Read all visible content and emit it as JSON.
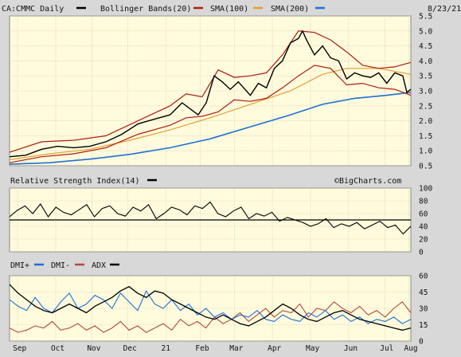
{
  "header": {
    "ticker": "CA:CMMC Daily",
    "date": "8/23/21",
    "watermark": "©BigCharts.com"
  },
  "colors": {
    "background": "#fffbdc",
    "frame": "#d8d8d8",
    "price": "#000000",
    "bollinger": "#b01b12",
    "sma100": "#e0a030",
    "sma200": "#1e6fd8",
    "dmi_plus": "#1e6fd8",
    "dmi_minus": "#b04a3a",
    "adx": "#000000"
  },
  "chart_data": [
    {
      "type": "line",
      "name": "price",
      "legend": [
        {
          "label": "CA:CMMC Daily",
          "color": "#000000"
        },
        {
          "label": "Bollinger Bands(20)",
          "color": "#b01b12"
        },
        {
          "label": "SMA(100)",
          "color": "#b01b12"
        },
        {
          "label": "SMA(200)",
          "color": "#e0a030"
        }
      ],
      "legend_extra_swatch": "#1e6fd8",
      "ylim": [
        0.5,
        5.5
      ],
      "y_ticks": [
        "5.5",
        "5.0",
        "4.5",
        "4.0",
        "3.5",
        "3.0",
        "2.5",
        "2.0",
        "1.5",
        "1.0",
        "0.5"
      ],
      "x_ticks": [
        "Sep",
        "Oct",
        "Nov",
        "Dec",
        "21",
        "Feb",
        "Mar",
        "Apr",
        "May",
        "Jun",
        "Jul",
        "Aug"
      ],
      "x_tick_positions": [
        0.02,
        0.115,
        0.205,
        0.295,
        0.39,
        0.475,
        0.56,
        0.655,
        0.75,
        0.845,
        0.935,
        0.995
      ],
      "price_points": [
        [
          0,
          0.8
        ],
        [
          0.04,
          0.85
        ],
        [
          0.08,
          1.05
        ],
        [
          0.12,
          1.15
        ],
        [
          0.16,
          1.1
        ],
        [
          0.2,
          1.15
        ],
        [
          0.24,
          1.3
        ],
        [
          0.28,
          1.55
        ],
        [
          0.32,
          1.9
        ],
        [
          0.36,
          2.05
        ],
        [
          0.4,
          2.2
        ],
        [
          0.43,
          2.6
        ],
        [
          0.45,
          2.4
        ],
        [
          0.47,
          2.2
        ],
        [
          0.49,
          2.6
        ],
        [
          0.51,
          3.5
        ],
        [
          0.53,
          3.3
        ],
        [
          0.55,
          3.05
        ],
        [
          0.57,
          3.3
        ],
        [
          0.6,
          2.85
        ],
        [
          0.62,
          3.25
        ],
        [
          0.64,
          3.1
        ],
        [
          0.66,
          3.75
        ],
        [
          0.68,
          4.0
        ],
        [
          0.7,
          4.6
        ],
        [
          0.72,
          4.75
        ],
        [
          0.73,
          5.0
        ],
        [
          0.74,
          4.7
        ],
        [
          0.76,
          4.2
        ],
        [
          0.78,
          4.5
        ],
        [
          0.8,
          4.1
        ],
        [
          0.82,
          4.0
        ],
        [
          0.84,
          3.4
        ],
        [
          0.86,
          3.6
        ],
        [
          0.88,
          3.5
        ],
        [
          0.9,
          3.45
        ],
        [
          0.92,
          3.6
        ],
        [
          0.94,
          3.25
        ],
        [
          0.96,
          3.6
        ],
        [
          0.98,
          3.5
        ],
        [
          0.99,
          2.95
        ],
        [
          1.0,
          3.05
        ]
      ],
      "bollinger_upper": [
        [
          0,
          0.95
        ],
        [
          0.08,
          1.3
        ],
        [
          0.16,
          1.35
        ],
        [
          0.24,
          1.5
        ],
        [
          0.32,
          2.0
        ],
        [
          0.4,
          2.5
        ],
        [
          0.44,
          2.9
        ],
        [
          0.48,
          2.8
        ],
        [
          0.52,
          3.7
        ],
        [
          0.56,
          3.45
        ],
        [
          0.6,
          3.5
        ],
        [
          0.64,
          3.6
        ],
        [
          0.68,
          4.2
        ],
        [
          0.72,
          5.0
        ],
        [
          0.76,
          4.95
        ],
        [
          0.8,
          4.7
        ],
        [
          0.84,
          4.3
        ],
        [
          0.88,
          3.85
        ],
        [
          0.92,
          3.75
        ],
        [
          0.96,
          3.8
        ],
        [
          1.0,
          3.95
        ]
      ],
      "bollinger_lower": [
        [
          0,
          0.6
        ],
        [
          0.08,
          0.8
        ],
        [
          0.16,
          0.9
        ],
        [
          0.24,
          1.1
        ],
        [
          0.32,
          1.55
        ],
        [
          0.4,
          1.85
        ],
        [
          0.44,
          2.1
        ],
        [
          0.48,
          2.15
        ],
        [
          0.52,
          2.3
        ],
        [
          0.56,
          2.7
        ],
        [
          0.6,
          2.65
        ],
        [
          0.64,
          2.75
        ],
        [
          0.68,
          3.1
        ],
        [
          0.72,
          3.5
        ],
        [
          0.76,
          3.85
        ],
        [
          0.8,
          3.75
        ],
        [
          0.84,
          3.2
        ],
        [
          0.88,
          3.25
        ],
        [
          0.92,
          3.1
        ],
        [
          0.96,
          3.05
        ],
        [
          1.0,
          2.85
        ]
      ],
      "sma100": [
        [
          0,
          0.7
        ],
        [
          0.1,
          0.9
        ],
        [
          0.2,
          1.05
        ],
        [
          0.3,
          1.35
        ],
        [
          0.4,
          1.7
        ],
        [
          0.5,
          2.1
        ],
        [
          0.6,
          2.55
        ],
        [
          0.7,
          3.0
        ],
        [
          0.78,
          3.55
        ],
        [
          0.84,
          3.75
        ],
        [
          0.92,
          3.75
        ],
        [
          1.0,
          3.55
        ]
      ],
      "sma200": [
        [
          0,
          0.55
        ],
        [
          0.1,
          0.6
        ],
        [
          0.2,
          0.72
        ],
        [
          0.3,
          0.88
        ],
        [
          0.4,
          1.1
        ],
        [
          0.5,
          1.4
        ],
        [
          0.6,
          1.8
        ],
        [
          0.7,
          2.2
        ],
        [
          0.78,
          2.55
        ],
        [
          0.86,
          2.75
        ],
        [
          0.94,
          2.85
        ],
        [
          1.0,
          2.95
        ]
      ]
    },
    {
      "type": "line",
      "name": "rsi",
      "title": "Relative Strength Index(14)",
      "legend_swatch": "#000000",
      "ylim": [
        0,
        100
      ],
      "y_ticks": [
        "100",
        "80",
        "60",
        "40",
        "20",
        "0"
      ],
      "reference_line": 50,
      "values": [
        55,
        65,
        72,
        60,
        75,
        55,
        70,
        62,
        58,
        66,
        74,
        55,
        68,
        72,
        60,
        56,
        70,
        64,
        74,
        52,
        60,
        70,
        66,
        58,
        72,
        68,
        78,
        60,
        55,
        64,
        70,
        52,
        60,
        56,
        62,
        48,
        54,
        50,
        46,
        40,
        44,
        52,
        38,
        44,
        40,
        46,
        36,
        42,
        48,
        38,
        42,
        28,
        40
      ]
    },
    {
      "type": "line",
      "name": "dmi",
      "legend": [
        {
          "label": "DMI+",
          "color": "#1e6fd8"
        },
        {
          "label": "DMI-",
          "color": "#b04a3a"
        },
        {
          "label": "ADX",
          "color": "#000000"
        }
      ],
      "ylim": [
        0,
        60
      ],
      "y_ticks": [
        "60",
        "45",
        "30",
        "15",
        "0"
      ],
      "dmi_plus": [
        38,
        32,
        28,
        40,
        30,
        26,
        36,
        44,
        30,
        34,
        42,
        38,
        30,
        44,
        36,
        28,
        46,
        34,
        30,
        38,
        28,
        34,
        24,
        30,
        22,
        26,
        20,
        24,
        22,
        28,
        20,
        18,
        24,
        20,
        18,
        26,
        22,
        28,
        20,
        24,
        18,
        22,
        16,
        20,
        18,
        22,
        16,
        20
      ],
      "dmi_minus": [
        12,
        8,
        10,
        14,
        12,
        18,
        10,
        12,
        16,
        10,
        14,
        8,
        12,
        18,
        10,
        14,
        8,
        12,
        16,
        10,
        20,
        14,
        18,
        12,
        22,
        16,
        20,
        26,
        18,
        24,
        30,
        22,
        28,
        26,
        34,
        22,
        30,
        28,
        36,
        30,
        26,
        32,
        24,
        28,
        22,
        30,
        36,
        26
      ],
      "adx": [
        52,
        44,
        38,
        32,
        28,
        26,
        30,
        34,
        30,
        26,
        32,
        36,
        40,
        46,
        50,
        44,
        40,
        46,
        44,
        38,
        34,
        30,
        26,
        22,
        20,
        24,
        20,
        16,
        14,
        18,
        22,
        28,
        34,
        30,
        24,
        20,
        18,
        22,
        26,
        28,
        24,
        20,
        18,
        16,
        14,
        12,
        10,
        12
      ]
    }
  ]
}
